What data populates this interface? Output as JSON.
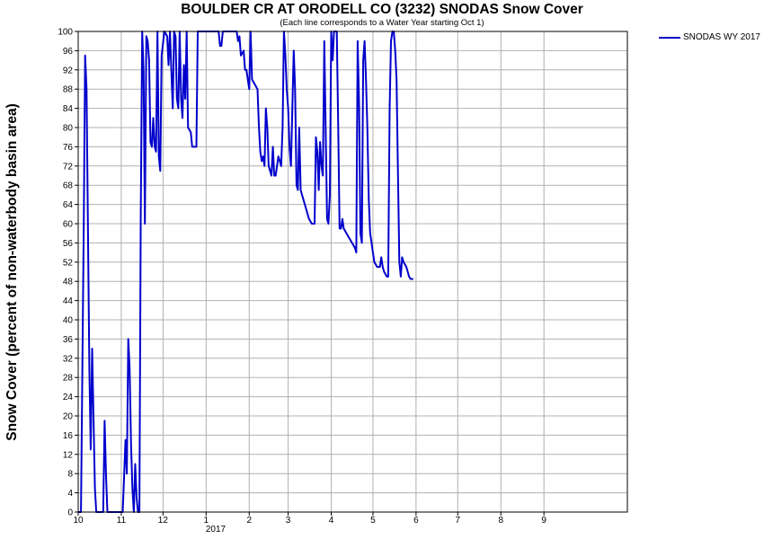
{
  "chart_data": {
    "type": "line",
    "title": "BOULDER CR AT ORODELL CO (3232) SNODAS Snow Cover",
    "subtitle": "(Each line corresponds to a Water Year starting Oct 1)",
    "ylabel": "Snow Cover (percent of non-waterbody basin area)",
    "xlabel": "",
    "xlim": [
      "2016-10-01",
      "2017-10-31"
    ],
    "ylim": [
      0,
      100
    ],
    "year_label": "2017",
    "x_ticks": [
      {
        "date": "2016-10-01",
        "label": "10"
      },
      {
        "date": "2016-11-01",
        "label": "11"
      },
      {
        "date": "2016-12-01",
        "label": "12"
      },
      {
        "date": "2017-01-01",
        "label": "1"
      },
      {
        "date": "2017-02-01",
        "label": "2"
      },
      {
        "date": "2017-03-01",
        "label": "3"
      },
      {
        "date": "2017-04-01",
        "label": "4"
      },
      {
        "date": "2017-05-01",
        "label": "5"
      },
      {
        "date": "2017-06-01",
        "label": "6"
      },
      {
        "date": "2017-07-01",
        "label": "7"
      },
      {
        "date": "2017-08-01",
        "label": "8"
      },
      {
        "date": "2017-09-01",
        "label": "9"
      }
    ],
    "y_ticks": [
      0,
      4,
      8,
      12,
      16,
      20,
      24,
      28,
      32,
      36,
      40,
      44,
      48,
      52,
      56,
      60,
      64,
      68,
      72,
      76,
      80,
      84,
      88,
      92,
      96,
      100
    ],
    "grid": true,
    "legend_position": "top-right outside",
    "series": [
      {
        "name": "SNODAS WY 2017",
        "color": "#0000cc",
        "points": [
          [
            "2016-10-01",
            0
          ],
          [
            "2016-10-03",
            0
          ],
          [
            "2016-10-05",
            60
          ],
          [
            "2016-10-06",
            95
          ],
          [
            "2016-10-07",
            88
          ],
          [
            "2016-10-08",
            60
          ],
          [
            "2016-10-09",
            30
          ],
          [
            "2016-10-10",
            13
          ],
          [
            "2016-10-11",
            34
          ],
          [
            "2016-10-12",
            20
          ],
          [
            "2016-10-13",
            5
          ],
          [
            "2016-10-14",
            0
          ],
          [
            "2016-10-19",
            0
          ],
          [
            "2016-10-20",
            19
          ],
          [
            "2016-10-21",
            8
          ],
          [
            "2016-10-22",
            0
          ],
          [
            "2016-11-02",
            0
          ],
          [
            "2016-11-03",
            7
          ],
          [
            "2016-11-04",
            15
          ],
          [
            "2016-11-05",
            8
          ],
          [
            "2016-11-06",
            36
          ],
          [
            "2016-11-07",
            30
          ],
          [
            "2016-11-08",
            14
          ],
          [
            "2016-11-09",
            5
          ],
          [
            "2016-11-10",
            0
          ],
          [
            "2016-11-11",
            10
          ],
          [
            "2016-11-12",
            3
          ],
          [
            "2016-11-13",
            0
          ],
          [
            "2016-11-14",
            0
          ],
          [
            "2016-11-15",
            62
          ],
          [
            "2016-11-16",
            100
          ],
          [
            "2016-11-17",
            92
          ],
          [
            "2016-11-18",
            60
          ],
          [
            "2016-11-19",
            99
          ],
          [
            "2016-11-20",
            98
          ],
          [
            "2016-11-21",
            94
          ],
          [
            "2016-11-22",
            77
          ],
          [
            "2016-11-23",
            76
          ],
          [
            "2016-11-24",
            82
          ],
          [
            "2016-11-25",
            76
          ],
          [
            "2016-11-26",
            75
          ],
          [
            "2016-11-27",
            100
          ],
          [
            "2016-11-28",
            74
          ],
          [
            "2016-11-29",
            71
          ],
          [
            "2016-11-30",
            95
          ],
          [
            "2016-12-02",
            100
          ],
          [
            "2016-12-04",
            99
          ],
          [
            "2016-12-05",
            93
          ],
          [
            "2016-12-06",
            100
          ],
          [
            "2016-12-07",
            92
          ],
          [
            "2016-12-08",
            84
          ],
          [
            "2016-12-09",
            100
          ],
          [
            "2016-12-10",
            99
          ],
          [
            "2016-12-11",
            86
          ],
          [
            "2016-12-12",
            84
          ],
          [
            "2016-12-13",
            100
          ],
          [
            "2016-12-14",
            86
          ],
          [
            "2016-12-15",
            82
          ],
          [
            "2016-12-16",
            93
          ],
          [
            "2016-12-17",
            86
          ],
          [
            "2016-12-18",
            100
          ],
          [
            "2016-12-19",
            80
          ],
          [
            "2016-12-21",
            79
          ],
          [
            "2016-12-22",
            76
          ],
          [
            "2016-12-25",
            76
          ],
          [
            "2016-12-26",
            100
          ],
          [
            "2017-01-10",
            100
          ],
          [
            "2017-01-11",
            97
          ],
          [
            "2017-01-12",
            97
          ],
          [
            "2017-01-13",
            100
          ],
          [
            "2017-01-20",
            100
          ],
          [
            "2017-01-23",
            100
          ],
          [
            "2017-01-24",
            98
          ],
          [
            "2017-01-25",
            99
          ],
          [
            "2017-01-26",
            95
          ],
          [
            "2017-01-28",
            96
          ],
          [
            "2017-01-29",
            92
          ],
          [
            "2017-01-30",
            92
          ],
          [
            "2017-01-31",
            90
          ],
          [
            "2017-02-01",
            88
          ],
          [
            "2017-02-02",
            100
          ],
          [
            "2017-02-03",
            90
          ],
          [
            "2017-02-05",
            89
          ],
          [
            "2017-02-07",
            88
          ],
          [
            "2017-02-08",
            80
          ],
          [
            "2017-02-09",
            75
          ],
          [
            "2017-02-10",
            73
          ],
          [
            "2017-02-11",
            74
          ],
          [
            "2017-02-12",
            72
          ],
          [
            "2017-02-13",
            84
          ],
          [
            "2017-02-14",
            80
          ],
          [
            "2017-02-15",
            72
          ],
          [
            "2017-02-16",
            71
          ],
          [
            "2017-02-17",
            70
          ],
          [
            "2017-02-18",
            76
          ],
          [
            "2017-02-19",
            70
          ],
          [
            "2017-02-20",
            70
          ],
          [
            "2017-02-21",
            72
          ],
          [
            "2017-02-22",
            74
          ],
          [
            "2017-02-23",
            73
          ],
          [
            "2017-02-24",
            72
          ],
          [
            "2017-02-25",
            80
          ],
          [
            "2017-02-26",
            100
          ],
          [
            "2017-02-27",
            95
          ],
          [
            "2017-02-28",
            88
          ],
          [
            "2017-03-01",
            84
          ],
          [
            "2017-03-02",
            76
          ],
          [
            "2017-03-03",
            72
          ],
          [
            "2017-03-05",
            96
          ],
          [
            "2017-03-06",
            88
          ],
          [
            "2017-03-07",
            68
          ],
          [
            "2017-03-08",
            67
          ],
          [
            "2017-03-09",
            80
          ],
          [
            "2017-03-10",
            67
          ],
          [
            "2017-03-11",
            66
          ],
          [
            "2017-03-12",
            65
          ],
          [
            "2017-03-14",
            63
          ],
          [
            "2017-03-15",
            62
          ],
          [
            "2017-03-16",
            61
          ],
          [
            "2017-03-18",
            60
          ],
          [
            "2017-03-20",
            60
          ],
          [
            "2017-03-21",
            78
          ],
          [
            "2017-03-22",
            75
          ],
          [
            "2017-03-23",
            67
          ],
          [
            "2017-03-24",
            77
          ],
          [
            "2017-03-25",
            72
          ],
          [
            "2017-03-26",
            70
          ],
          [
            "2017-03-27",
            98
          ],
          [
            "2017-03-28",
            80
          ],
          [
            "2017-03-29",
            61
          ],
          [
            "2017-03-30",
            60
          ],
          [
            "2017-03-31",
            66
          ],
          [
            "2017-04-01",
            100
          ],
          [
            "2017-04-02",
            94
          ],
          [
            "2017-04-03",
            100
          ],
          [
            "2017-04-05",
            100
          ],
          [
            "2017-04-06",
            80
          ],
          [
            "2017-04-07",
            59
          ],
          [
            "2017-04-08",
            59
          ],
          [
            "2017-04-09",
            61
          ],
          [
            "2017-04-10",
            59
          ],
          [
            "2017-04-12",
            58
          ],
          [
            "2017-04-14",
            57
          ],
          [
            "2017-04-16",
            56
          ],
          [
            "2017-04-18",
            55
          ],
          [
            "2017-04-19",
            54
          ],
          [
            "2017-04-20",
            98
          ],
          [
            "2017-04-21",
            85
          ],
          [
            "2017-04-22",
            58
          ],
          [
            "2017-04-23",
            56
          ],
          [
            "2017-04-24",
            94
          ],
          [
            "2017-04-25",
            98
          ],
          [
            "2017-04-26",
            90
          ],
          [
            "2017-04-27",
            80
          ],
          [
            "2017-04-28",
            65
          ],
          [
            "2017-04-29",
            58
          ],
          [
            "2017-04-30",
            56
          ],
          [
            "2017-05-01",
            54
          ],
          [
            "2017-05-02",
            52
          ],
          [
            "2017-05-04",
            51
          ],
          [
            "2017-05-06",
            51
          ],
          [
            "2017-05-07",
            53
          ],
          [
            "2017-05-08",
            51
          ],
          [
            "2017-05-09",
            50
          ],
          [
            "2017-05-11",
            49
          ],
          [
            "2017-05-12",
            49
          ],
          [
            "2017-05-13",
            84
          ],
          [
            "2017-05-14",
            98
          ],
          [
            "2017-05-15",
            100
          ],
          [
            "2017-05-16",
            100
          ],
          [
            "2017-05-17",
            96
          ],
          [
            "2017-05-18",
            90
          ],
          [
            "2017-05-19",
            70
          ],
          [
            "2017-05-20",
            52
          ],
          [
            "2017-05-21",
            49
          ],
          [
            "2017-05-22",
            53
          ],
          [
            "2017-05-23",
            52
          ],
          [
            "2017-05-25",
            51
          ],
          [
            "2017-05-26",
            50
          ],
          [
            "2017-05-27",
            49
          ],
          [
            "2017-05-28",
            48.5
          ],
          [
            "2017-05-30",
            48.5
          ]
        ]
      }
    ]
  }
}
